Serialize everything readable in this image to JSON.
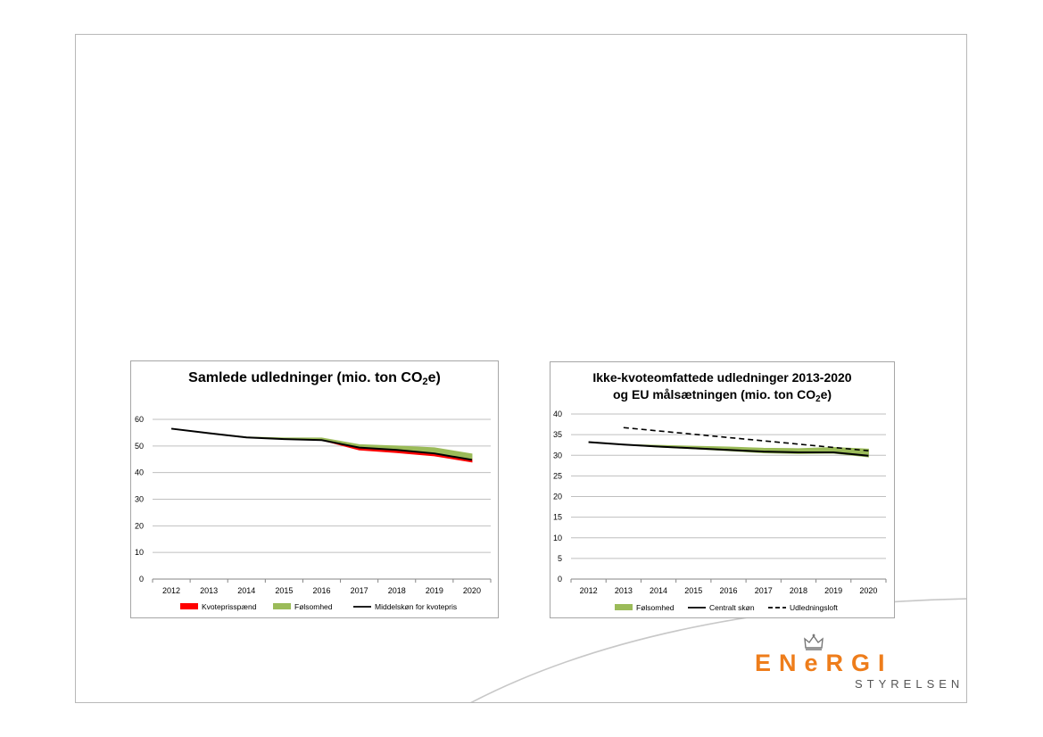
{
  "chart_data": [
    {
      "type": "line",
      "title_main": "Samlede udledninger (mio. ton CO",
      "title_sub": "2",
      "title_end": "e)",
      "x": [
        "2012",
        "2013",
        "2014",
        "2015",
        "2016",
        "2017",
        "2018",
        "2019",
        "2020"
      ],
      "ylim": [
        0,
        60
      ],
      "yticks": [
        "0",
        "10",
        "20",
        "30",
        "40",
        "50",
        "60"
      ],
      "grid": true,
      "legend_position": "bottom",
      "series": [
        {
          "name": "Kvoteprisspænd",
          "kind": "band",
          "color": "#ff0000",
          "low": [
            56.5,
            54.8,
            53.2,
            52.6,
            52.2,
            48.5,
            47.5,
            46.3,
            44.0
          ],
          "high": [
            56.5,
            54.8,
            53.2,
            52.6,
            52.2,
            49.5,
            48.5,
            47.3,
            45.2
          ]
        },
        {
          "name": "Følsomhed",
          "kind": "band",
          "color": "#9bbb59",
          "low": [
            56.5,
            54.8,
            53.2,
            52.6,
            52.2,
            49.5,
            48.5,
            47.5,
            45.2
          ],
          "high": [
            56.5,
            54.8,
            53.4,
            53.0,
            53.0,
            50.5,
            50.0,
            49.3,
            47.0
          ]
        },
        {
          "name": "Middelskøn for kvotepris",
          "kind": "line",
          "color": "#000000",
          "values": [
            56.5,
            54.8,
            53.2,
            52.6,
            52.2,
            49.4,
            48.5,
            47.2,
            44.8
          ]
        }
      ]
    },
    {
      "type": "line",
      "title_line1": "Ikke-kvoteomfattede udledninger 2013-2020",
      "title_main": "og EU målsætningen (mio. ton CO",
      "title_sub": "2",
      "title_end": "e)",
      "x": [
        "2012",
        "2013",
        "2014",
        "2015",
        "2016",
        "2017",
        "2018",
        "2019",
        "2020"
      ],
      "ylim": [
        0,
        40
      ],
      "yticks": [
        "0",
        "5",
        "10",
        "15",
        "20",
        "25",
        "30",
        "35",
        "40"
      ],
      "grid": true,
      "legend_position": "bottom",
      "series": [
        {
          "name": "Følsomhed",
          "kind": "band",
          "color": "#9bbb59",
          "low": [
            33.2,
            32.6,
            32.0,
            31.6,
            31.1,
            30.6,
            30.4,
            30.5,
            29.6
          ],
          "high": [
            33.2,
            32.6,
            32.4,
            32.2,
            32.0,
            31.7,
            31.6,
            31.9,
            31.5
          ]
        },
        {
          "name": "Centralt skøn",
          "kind": "line",
          "color": "#000000",
          "values": [
            33.2,
            32.6,
            32.1,
            31.7,
            31.3,
            30.9,
            30.7,
            30.7,
            29.9
          ]
        },
        {
          "name": "Udledningsloft",
          "kind": "dashed",
          "color": "#000000",
          "values": [
            null,
            36.7,
            35.9,
            35.1,
            34.3,
            33.5,
            32.7,
            31.9,
            31.1
          ]
        }
      ]
    }
  ],
  "logo": {
    "word_left": "EN",
    "word_mid": "e",
    "word_right": "RGI",
    "sub": "STYRELSEN",
    "color": "#ee7d1b"
  }
}
